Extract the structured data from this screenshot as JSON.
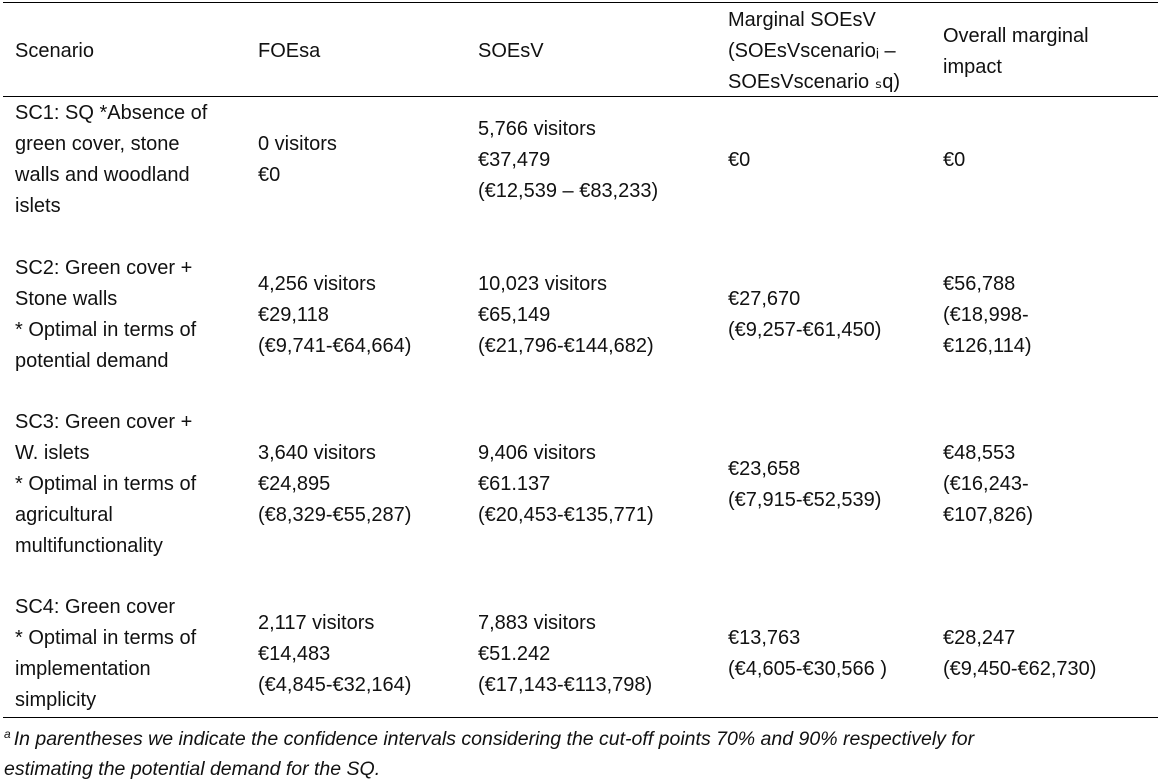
{
  "table": {
    "header": [
      [
        "Scenario"
      ],
      [
        "FOEsa"
      ],
      [
        "SOEsV"
      ],
      [
        "Marginal SOEsV",
        "(SOEsVscenarioᵢ –",
        "SOEsVscenario ₛq)"
      ],
      [
        "Overall marginal",
        "impact"
      ]
    ],
    "rows": [
      [
        [
          "SC1: SQ *Absence of",
          "green cover, stone",
          "walls and woodland",
          "islets"
        ],
        [
          "0 visitors",
          "€0"
        ],
        [
          "5,766 visitors",
          "€37,479",
          "(€12,539 – €83,233)"
        ],
        [
          "€0"
        ],
        [
          "€0"
        ]
      ],
      [
        [
          "SC2: Green cover +",
          "Stone walls",
          "* Optimal in terms of",
          "potential demand"
        ],
        [
          "4,256 visitors",
          "€29,118",
          "(€9,741-€64,664)"
        ],
        [
          "10,023 visitors",
          "€65,149",
          "(€21,796-€144,682)"
        ],
        [
          "€27,670",
          "(€9,257-€61,450)"
        ],
        [
          "€56,788",
          "(€18,998-",
          "€126,114)"
        ]
      ],
      [
        [
          "SC3: Green cover +",
          "W. islets",
          "* Optimal in terms of",
          "agricultural",
          "multifunctionality"
        ],
        [
          "3,640 visitors",
          "€24,895",
          "(€8,329-€55,287)"
        ],
        [
          "9,406 visitors",
          "€61.137",
          "(€20,453-€135,771)"
        ],
        [
          "€23,658",
          "(€7,915-€52,539)"
        ],
        [
          "€48,553",
          "(€16,243-",
          "€107,826)"
        ]
      ],
      [
        [
          "SC4: Green cover",
          "* Optimal in terms of",
          "implementation",
          "simplicity"
        ],
        [
          "2,117 visitors",
          "€14,483",
          "(€4,845-€32,164)"
        ],
        [
          "7,883 visitors",
          "€51.242",
          "(€17,143-€113,798)"
        ],
        [
          "€13,763",
          "(€4,605-€30,566 )"
        ],
        [
          "€28,247",
          "(€9,450-€62,730)"
        ]
      ]
    ]
  },
  "footnote": {
    "marker": "a",
    "lines": [
      "In parentheses we indicate the confidence intervals considering the cut-off points 70% and 90% respectively for",
      "estimating the potential demand for the SQ."
    ]
  }
}
